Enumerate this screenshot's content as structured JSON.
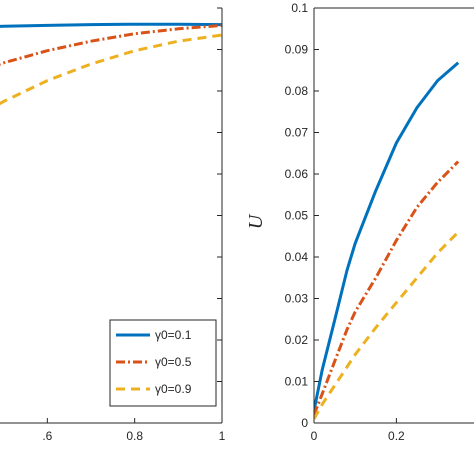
{
  "chart_data": [
    {
      "type": "line",
      "title": "",
      "xlabel": "",
      "ylabel": "",
      "xlim": [
        0.4,
        1
      ],
      "ylim": [
        0,
        0.1
      ],
      "x_ticks": [
        0.6,
        0.8,
        1
      ],
      "x_tick_labels": [
        ".6",
        "0.8",
        "1"
      ],
      "grid": false,
      "legend_position": "bottom-right",
      "series": [
        {
          "name": "γ0=0.1",
          "color": "#0072BD",
          "dash": "solid",
          "x": [
            0.4,
            0.5,
            0.6,
            0.7,
            0.8,
            0.9,
            1.0
          ],
          "y": [
            0.0955,
            0.0956,
            0.0958,
            0.096,
            0.0961,
            0.0961,
            0.096
          ]
        },
        {
          "name": "γ0=0.5",
          "color": "#D95319",
          "dash": "dashdot",
          "x": [
            0.4,
            0.5,
            0.6,
            0.7,
            0.8,
            0.9,
            1.0
          ],
          "y": [
            0.083,
            0.0868,
            0.0897,
            0.092,
            0.0938,
            0.095,
            0.0958
          ]
        },
        {
          "name": "γ0=0.9",
          "color": "#EDB120",
          "dash": "dashed",
          "x": [
            0.4,
            0.5,
            0.6,
            0.7,
            0.8,
            0.9,
            1.0
          ],
          "y": [
            0.0715,
            0.0775,
            0.0825,
            0.0865,
            0.0897,
            0.092,
            0.0935
          ]
        }
      ]
    },
    {
      "type": "line",
      "title": "",
      "xlabel": "",
      "ylabel": "U",
      "xlim": [
        0,
        0.5
      ],
      "ylim": [
        0,
        0.1
      ],
      "x_ticks": [
        0,
        0.2
      ],
      "x_tick_labels": [
        "0",
        "0.2"
      ],
      "y_ticks": [
        0,
        0.01,
        0.02,
        0.03,
        0.04,
        0.05,
        0.06,
        0.07,
        0.08,
        0.09,
        0.1
      ],
      "y_tick_labels": [
        "0",
        "0.01",
        "0.02",
        "0.03",
        "0.04",
        "0.05",
        "0.06",
        "0.07",
        "0.08",
        "0.09",
        "0.1"
      ],
      "grid": false,
      "series": [
        {
          "color": "#0072BD",
          "dash": "solid",
          "x": [
            0.0,
            0.02,
            0.05,
            0.08,
            0.1,
            0.15,
            0.2,
            0.25,
            0.3,
            0.35
          ],
          "y": [
            0.003,
            0.0128,
            0.0247,
            0.0368,
            0.0433,
            0.056,
            0.0675,
            0.076,
            0.0825,
            0.0868
          ]
        },
        {
          "color": "#D95319",
          "dash": "dashdot",
          "x": [
            0.0,
            0.02,
            0.05,
            0.08,
            0.1,
            0.15,
            0.2,
            0.25,
            0.3,
            0.35
          ],
          "y": [
            0.002,
            0.007,
            0.0148,
            0.0225,
            0.0268,
            0.035,
            0.044,
            0.052,
            0.058,
            0.063
          ]
        },
        {
          "color": "#EDB120",
          "dash": "dashed",
          "x": [
            0.0,
            0.02,
            0.05,
            0.08,
            0.1,
            0.15,
            0.2,
            0.25,
            0.3,
            0.35
          ],
          "y": [
            0.001,
            0.0045,
            0.009,
            0.0135,
            0.0165,
            0.023,
            0.029,
            0.035,
            0.041,
            0.046
          ]
        }
      ]
    }
  ]
}
